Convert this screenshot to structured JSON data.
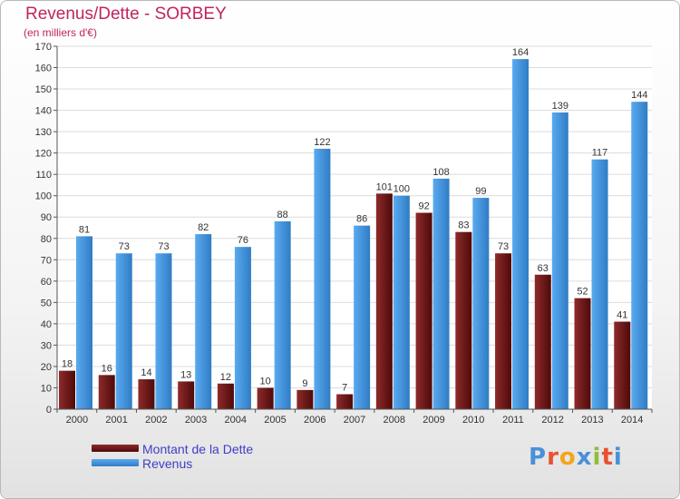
{
  "title": "Revenus/Dette - SORBEY",
  "subtitle": "(en milliers d'€)",
  "logo": {
    "text": "Proxiti",
    "letter_colors": [
      "#4a90d9",
      "#e8522f",
      "#f3a51c",
      "#4a90d9",
      "#8fbf3a",
      "#e8522f",
      "#4a90d9"
    ]
  },
  "chart_data": {
    "type": "bar",
    "title": "Revenus/Dette - SORBEY",
    "subtitle": "(en milliers d'€)",
    "categories": [
      "2000",
      "2001",
      "2002",
      "2003",
      "2004",
      "2005",
      "2006",
      "2007",
      "2008",
      "2009",
      "2010",
      "2011",
      "2012",
      "2013",
      "2014"
    ],
    "series": [
      {
        "name": "Montant de la Dette",
        "color": "#7a1a1a",
        "values": [
          18,
          16,
          14,
          13,
          12,
          10,
          9,
          7,
          101,
          92,
          83,
          73,
          63,
          52,
          41
        ]
      },
      {
        "name": "Revenus",
        "color": "#3d8fd9",
        "values": [
          81,
          73,
          73,
          82,
          76,
          88,
          122,
          86,
          100,
          108,
          99,
          164,
          139,
          117,
          144
        ]
      }
    ],
    "ylim": [
      0,
      170
    ],
    "yticks": [
      0,
      10,
      20,
      30,
      40,
      50,
      60,
      70,
      80,
      90,
      100,
      110,
      120,
      130,
      140,
      150,
      160,
      170
    ],
    "grid": true,
    "legend": "bottom-left"
  }
}
